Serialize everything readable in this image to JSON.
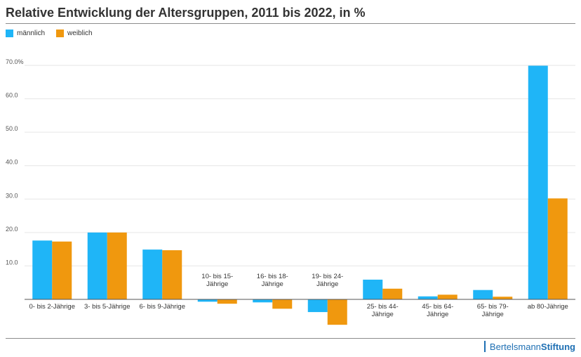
{
  "chart_data": {
    "type": "bar",
    "title": "Relative Entwicklung der Altersgruppen, 2011 bis 2022, in %",
    "categories": [
      [
        "0- bis 2-Jährige"
      ],
      [
        "3- bis 5-Jährige"
      ],
      [
        "6- bis 9-Jährige"
      ],
      [
        "10- bis 15-",
        "Jährige"
      ],
      [
        "16- bis 18-",
        "Jährige"
      ],
      [
        "19- bis 24-",
        "Jährige"
      ],
      [
        "25- bis 44-",
        "Jährige"
      ],
      [
        "45- bis 64-",
        "Jährige"
      ],
      [
        "65- bis 79-",
        "Jährige"
      ],
      [
        "ab 80-Jährige"
      ]
    ],
    "series": [
      {
        "name": "männlich",
        "color": "#1fb5f7",
        "values": [
          17.6,
          20.0,
          14.9,
          -0.7,
          -0.9,
          -3.8,
          5.9,
          0.9,
          2.8,
          69.9
        ]
      },
      {
        "name": "weiblich",
        "color": "#f0980e",
        "values": [
          17.3,
          20.0,
          14.7,
          -1.3,
          -2.8,
          -7.6,
          3.2,
          1.4,
          0.8,
          30.2
        ]
      }
    ],
    "y_ticks": [
      "10.0",
      "20.0",
      "30.0",
      "40.0",
      "50.0",
      "60.0",
      "70.0%"
    ],
    "ylim": [
      -8,
      70
    ],
    "grid": true,
    "legend_position": "top-left"
  },
  "brand": {
    "name": "Bertelsmann",
    "strong": "Stiftung"
  }
}
